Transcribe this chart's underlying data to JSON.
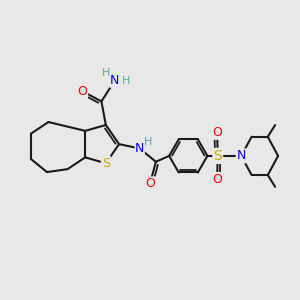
{
  "background_color": "#e8e8e8",
  "fig_size": [
    3.0,
    3.0
  ],
  "dpi": 100,
  "atom_colors": {
    "C": "#1a1a1a",
    "H": "#5aaa99",
    "N": "#0000ee",
    "O": "#ff0000",
    "S": "#ccaa00"
  },
  "bond_color": "#1a1a1a",
  "bond_width": 1.5
}
